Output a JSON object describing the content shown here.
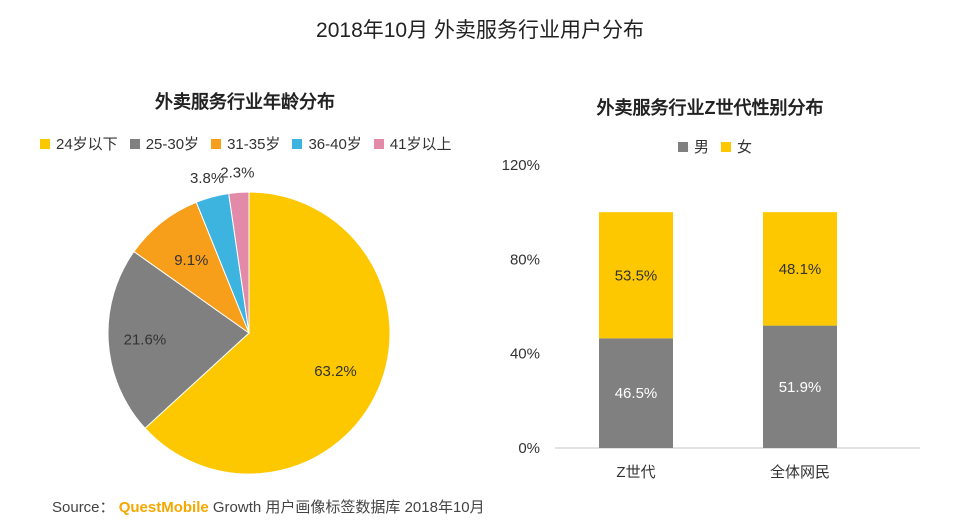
{
  "title": "2018年10月 外卖服务行业用户分布",
  "colors": {
    "pie": [
      "#fdc800",
      "#808080",
      "#f79e1b",
      "#3db3e0",
      "#e28aa8"
    ],
    "male": "#808080",
    "female": "#fdc800",
    "axis": "#d9d9d9"
  },
  "chart_data": [
    {
      "type": "pie",
      "title": "外卖服务行业年龄分布",
      "categories": [
        "24岁以下",
        "25-30岁",
        "31-35岁",
        "36-40岁",
        "41岁以上"
      ],
      "values": [
        63.2,
        21.6,
        9.1,
        3.8,
        2.3
      ],
      "labels": [
        "63.2%",
        "21.6%",
        "9.1%",
        "3.8%",
        "2.3%"
      ]
    },
    {
      "type": "bar",
      "stacked": true,
      "title": "外卖服务行业Z世代性别分布",
      "categories": [
        "Z世代",
        "全体网民"
      ],
      "series": [
        {
          "name": "男",
          "values": [
            46.5,
            51.9
          ],
          "labels": [
            "46.5%",
            "51.9%"
          ]
        },
        {
          "name": "女",
          "values": [
            53.5,
            48.1
          ],
          "labels": [
            "53.5%",
            "48.1%"
          ]
        }
      ],
      "yticks": [
        "0%",
        "40%",
        "80%",
        "120%"
      ],
      "ylim": [
        0,
        120
      ]
    }
  ],
  "source": {
    "prefix": "Source：",
    "brand": "QuestMobile",
    "text": " Growth 用户画像标签数据库 2018年10月"
  }
}
